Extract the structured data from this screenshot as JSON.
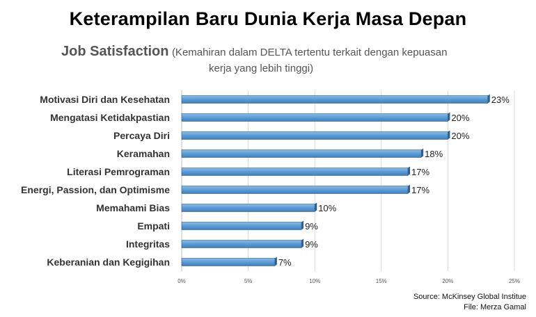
{
  "header": {
    "title": "Keterampilan Baru Dunia Kerja Masa Depan",
    "subtitle_main": "Job Satisfaction",
    "subtitle_note_line1": "(Kemahiran dalam DELTA tertentu terkait dengan kepuasan",
    "subtitle_note_line2": "kerja yang lebih tinggi)"
  },
  "chart_data": {
    "type": "bar",
    "orientation": "horizontal",
    "categories": [
      "Motivasi Diri dan Kesehatan",
      "Mengatasi Ketidakpastian",
      "Percaya Diri",
      "Keramahan",
      "Literasi Pemrograman",
      "Energi, Passion, dan Optimisme",
      "Memahami Bias",
      "Empati",
      "Integritas",
      "Keberanian dan Kegigihan"
    ],
    "values": [
      23,
      20,
      20,
      18,
      17,
      17,
      10,
      9,
      9,
      7
    ],
    "data_labels": [
      "23%",
      "20%",
      "20%",
      "18%",
      "17%",
      "17%",
      "10%",
      "9%",
      "9%",
      "7%"
    ],
    "xlim": [
      0,
      25
    ],
    "xticks": [
      0,
      5,
      10,
      15,
      20,
      25
    ],
    "xtick_labels": [
      "0%",
      "5%",
      "10%",
      "15%",
      "20%",
      "25%"
    ],
    "grid": true,
    "bar_color": "#5b9bd5",
    "bar_edge_color": "#2e5f8e"
  },
  "footer": {
    "source": "Source: McKinsey Global Institue",
    "file": "File: Merza Gamal"
  }
}
